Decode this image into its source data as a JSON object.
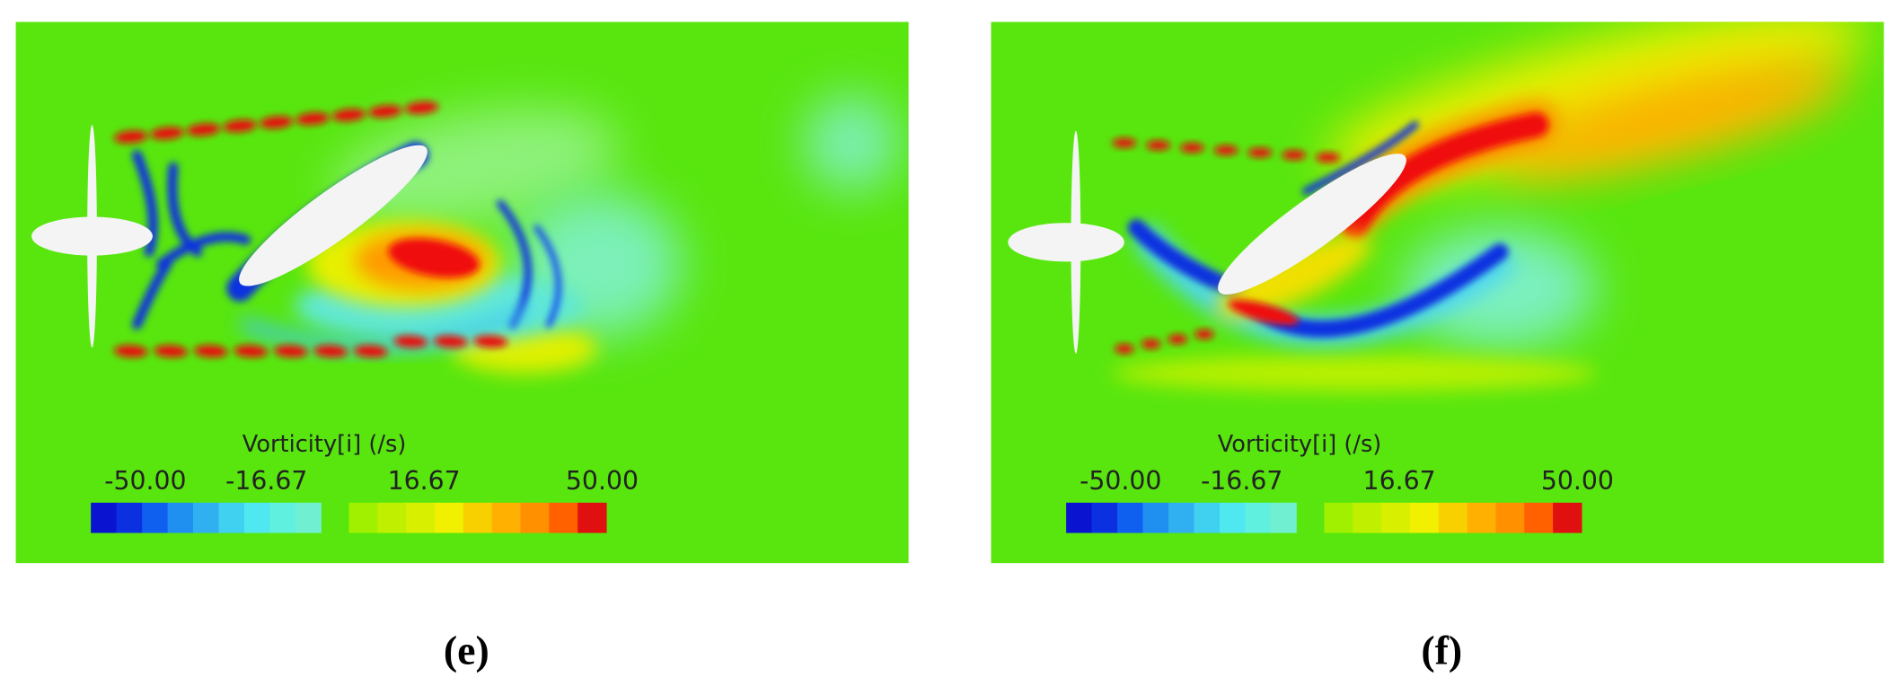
{
  "panels": [
    {
      "label": "(e)",
      "colorbar": {
        "title": "Vorticity[i] (/s)",
        "ticks": [
          "-50.00",
          "-16.67",
          "16.67",
          "50.00"
        ]
      }
    },
    {
      "label": "(f)",
      "colorbar": {
        "title": "Vorticity[i] (/s)",
        "ticks": [
          "-50.00",
          "-16.67",
          "16.67",
          "50.00"
        ]
      }
    }
  ]
}
